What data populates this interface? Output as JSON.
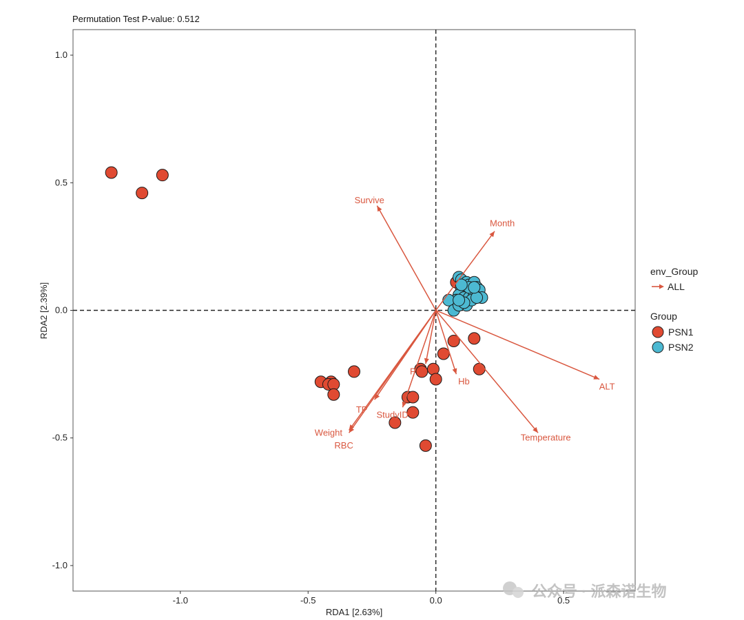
{
  "chart_data": {
    "type": "scatter",
    "title": "Permutation Test P-value: 0.512",
    "xlabel": "RDA1 [2.63%]",
    "ylabel": "RDA2 [2.39%]",
    "xlim": [
      -1.42,
      0.78
    ],
    "ylim": [
      -1.1,
      1.1
    ],
    "x_ticks": [
      -1.0,
      -0.5,
      0.0,
      0.5
    ],
    "x_tick_labels": [
      "-1.0",
      "-0.5",
      "0.0",
      "0.5"
    ],
    "y_ticks": [
      -1.0,
      -0.5,
      0.0,
      0.5,
      1.0
    ],
    "y_tick_labels": [
      "-1.0",
      "-0.5",
      "0.0",
      "0.5",
      "1.0"
    ],
    "grid": false,
    "reference_lines": {
      "x": 0,
      "y": 0,
      "style": "dashed"
    },
    "legend_position": "right",
    "arrow_color": "#d9573f",
    "env_legend_title": "env_Group",
    "env_legend_item": "ALL",
    "group_legend_title": "Group",
    "series": [
      {
        "name": "PSN1",
        "color": "#e04a32",
        "points": [
          [
            -1.27,
            0.54
          ],
          [
            -1.15,
            0.46
          ],
          [
            -1.07,
            0.53
          ],
          [
            -0.45,
            -0.28
          ],
          [
            -0.41,
            -0.28
          ],
          [
            -0.42,
            -0.29
          ],
          [
            -0.4,
            -0.29
          ],
          [
            -0.4,
            -0.33
          ],
          [
            -0.32,
            -0.24
          ],
          [
            -0.16,
            -0.44
          ],
          [
            -0.11,
            -0.34
          ],
          [
            -0.09,
            -0.34
          ],
          [
            -0.09,
            -0.4
          ],
          [
            -0.06,
            -0.23
          ],
          [
            -0.055,
            -0.24
          ],
          [
            -0.01,
            -0.23
          ],
          [
            0.0,
            -0.27
          ],
          [
            -0.04,
            -0.53
          ],
          [
            0.03,
            -0.17
          ],
          [
            0.07,
            -0.12
          ],
          [
            0.15,
            -0.11
          ],
          [
            0.17,
            -0.23
          ],
          [
            0.08,
            0.11
          ]
        ]
      },
      {
        "name": "PSN2",
        "color": "#4cb9d2",
        "points": [
          [
            0.09,
            0.13
          ],
          [
            0.1,
            0.12
          ],
          [
            0.12,
            0.11
          ],
          [
            0.13,
            0.1
          ],
          [
            0.15,
            0.11
          ],
          [
            0.16,
            0.09
          ],
          [
            0.1,
            0.08
          ],
          [
            0.12,
            0.07
          ],
          [
            0.14,
            0.08
          ],
          [
            0.17,
            0.08
          ],
          [
            0.09,
            0.06
          ],
          [
            0.11,
            0.05
          ],
          [
            0.13,
            0.05
          ],
          [
            0.15,
            0.06
          ],
          [
            0.18,
            0.05
          ],
          [
            0.1,
            0.03
          ],
          [
            0.12,
            0.02
          ],
          [
            0.14,
            0.04
          ],
          [
            0.16,
            0.05
          ],
          [
            0.08,
            0.04
          ],
          [
            0.05,
            0.04
          ],
          [
            0.07,
            0.0
          ],
          [
            0.09,
            0.02
          ],
          [
            0.11,
            0.03
          ],
          [
            0.13,
            0.09
          ],
          [
            0.1,
            0.1
          ],
          [
            0.09,
            0.04
          ],
          [
            0.15,
            0.09
          ]
        ]
      }
    ],
    "env_vectors": [
      {
        "name": "Survive",
        "end": [
          -0.23,
          0.41
        ],
        "label": [
          -0.26,
          0.43
        ]
      },
      {
        "name": "Month",
        "end": [
          0.23,
          0.31
        ],
        "label": [
          0.26,
          0.34
        ]
      },
      {
        "name": "ALT",
        "end": [
          0.64,
          -0.27
        ],
        "label": [
          0.67,
          -0.3
        ]
      },
      {
        "name": "Temperature",
        "end": [
          0.4,
          -0.48
        ],
        "label": [
          0.43,
          -0.5
        ]
      },
      {
        "name": "Hb",
        "end": [
          0.08,
          -0.25
        ],
        "label": [
          0.11,
          -0.28
        ]
      },
      {
        "name": "P",
        "end": [
          -0.04,
          -0.21
        ],
        "label": [
          -0.09,
          -0.24
        ]
      },
      {
        "name": "StudyID",
        "end": [
          -0.13,
          -0.38
        ],
        "label": [
          -0.17,
          -0.41
        ]
      },
      {
        "name": "TP",
        "end": [
          -0.24,
          -0.35
        ],
        "label": [
          -0.29,
          -0.39
        ]
      },
      {
        "name": "Weight",
        "end": [
          -0.34,
          -0.48
        ],
        "label": [
          -0.42,
          -0.48
        ]
      },
      {
        "name": "RBC",
        "end": [
          -0.34,
          -0.47
        ],
        "label": [
          -0.36,
          -0.53
        ]
      }
    ]
  },
  "watermark": "公众号 · 派森诺生物"
}
